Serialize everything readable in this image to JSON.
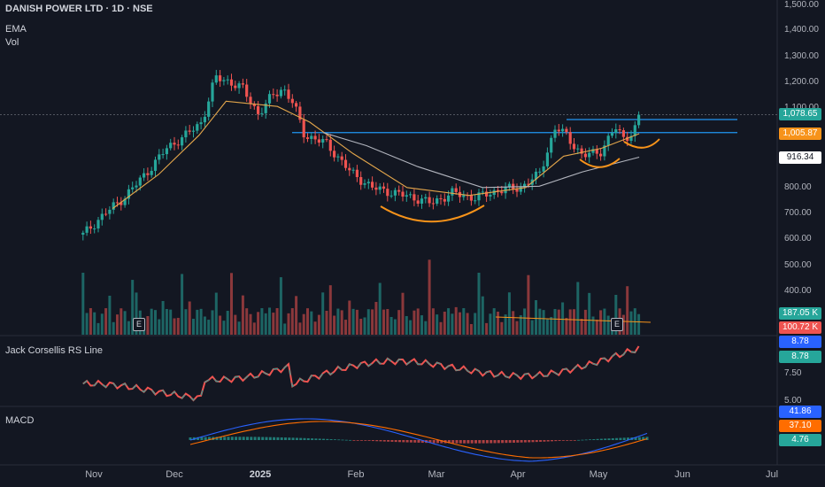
{
  "header": {
    "symbol": "DANISH POWER LTD · 1D · NSE",
    "ema_label": "EMA",
    "vol_label": "Vol"
  },
  "panes": {
    "rs_label": "Jack Corsellis RS Line",
    "macd_label": "MACD"
  },
  "colors": {
    "up": "#26a69a",
    "down": "#ef5350",
    "ema_short": "#e3a64b",
    "ema_long": "#b2b5be",
    "resistance": "#2196f3",
    "cup": "#f7931a",
    "macd": "#2962ff",
    "signal": "#ff6d00"
  },
  "price_axis": {
    "ticks": [
      "1,500.00",
      "1,400.00",
      "1,300.00",
      "1,200.00",
      "1,100.00",
      "800.00",
      "700.00",
      "600.00",
      "500.00",
      "400.00"
    ]
  },
  "rs_axis": {
    "ticks": [
      "7.50",
      "5.00"
    ]
  },
  "x_axis": {
    "labels": [
      "Nov",
      "Dec",
      "2025",
      "Feb",
      "Mar",
      "Apr",
      "May",
      "Jun",
      "Jul"
    ]
  },
  "badges": {
    "last_price": "1,078.65",
    "ema_short": "1,005.87",
    "ema_long": "916.34",
    "vol_1": "187.05 K",
    "vol_2": "100.72 K",
    "rs_1": "8.78",
    "rs_2": "8.78",
    "macd_1": "41.86",
    "macd_2": "37.10",
    "macd_hist": "4.76"
  },
  "events": {
    "e1": "E",
    "e2": "E"
  },
  "chart_data": {
    "type": "candlestick",
    "title": "DANISH POWER LTD · 1D · NSE",
    "price_range": [
      400,
      1500
    ],
    "resistance_levels": [
      1060,
      1010
    ],
    "price_keypoints": [
      [
        "2024-10-28",
        620
      ],
      [
        "2024-11-05",
        700
      ],
      [
        "2024-11-12",
        760
      ],
      [
        "2024-11-20",
        850
      ],
      [
        "2024-11-28",
        950
      ],
      [
        "2024-12-05",
        1000
      ],
      [
        "2024-12-11",
        1050
      ],
      [
        "2024-12-16",
        1220
      ],
      [
        "2024-12-20",
        1210
      ],
      [
        "2024-12-26",
        1180
      ],
      [
        "2025-01-01",
        1080
      ],
      [
        "2025-01-06",
        1150
      ],
      [
        "2025-01-10",
        1180
      ],
      [
        "2025-01-14",
        1120
      ],
      [
        "2025-01-18",
        1000
      ],
      [
        "2025-01-26",
        970
      ],
      [
        "2025-02-04",
        860
      ],
      [
        "2025-02-12",
        800
      ],
      [
        "2025-02-20",
        780
      ],
      [
        "2025-02-28",
        760
      ],
      [
        "2025-03-06",
        740
      ],
      [
        "2025-03-14",
        780
      ],
      [
        "2025-03-22",
        760
      ],
      [
        "2025-03-31",
        790
      ],
      [
        "2025-04-08",
        800
      ],
      [
        "2025-04-15",
        850
      ],
      [
        "2025-04-21",
        1030
      ],
      [
        "2025-04-25",
        1000
      ],
      [
        "2025-05-01",
        920
      ],
      [
        "2025-05-08",
        940
      ],
      [
        "2025-05-13",
        1030
      ],
      [
        "2025-05-16",
        990
      ],
      [
        "2025-05-20",
        1010
      ],
      [
        "2025-05-22",
        1078
      ]
    ],
    "ema_short_keypoints": [
      [
        "2024-11-08",
        720
      ],
      [
        "2024-11-25",
        850
      ],
      [
        "2024-12-10",
        1000
      ],
      [
        "2024-12-20",
        1130
      ],
      [
        "2025-01-08",
        1110
      ],
      [
        "2025-01-20",
        1050
      ],
      [
        "2025-02-05",
        930
      ],
      [
        "2025-02-25",
        800
      ],
      [
        "2025-03-20",
        770
      ],
      [
        "2025-04-10",
        800
      ],
      [
        "2025-04-24",
        920
      ],
      [
        "2025-05-08",
        950
      ],
      [
        "2025-05-22",
        1006
      ]
    ],
    "ema_long_keypoints": [
      [
        "2025-01-25",
        1010
      ],
      [
        "2025-02-10",
        960
      ],
      [
        "2025-03-01",
        880
      ],
      [
        "2025-03-25",
        800
      ],
      [
        "2025-04-15",
        805
      ],
      [
        "2025-05-01",
        860
      ],
      [
        "2025-05-22",
        916
      ]
    ],
    "volume_last": 187.05,
    "rs_line_last": 8.78,
    "rs_range": [
      5.0,
      10.0
    ],
    "macd": {
      "macd_last": 41.86,
      "signal_last": 37.1,
      "histogram_last": 4.76
    }
  }
}
